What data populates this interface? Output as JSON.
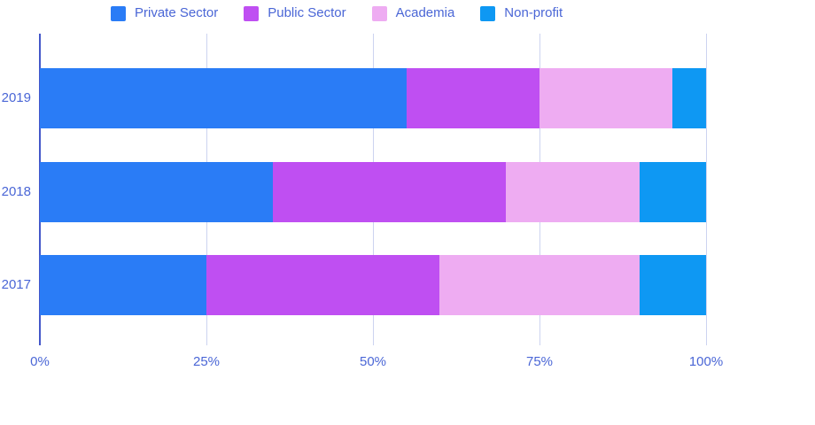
{
  "chart_data": {
    "type": "bar",
    "orientation": "horizontal",
    "stacked": "percent",
    "title": "",
    "xlabel": "",
    "ylabel": "",
    "categories": [
      "2019",
      "2018",
      "2017"
    ],
    "series": [
      {
        "name": "Private Sector",
        "color": "#2a7cf6",
        "values": [
          55,
          35,
          25
        ]
      },
      {
        "name": "Public Sector",
        "color": "#bf4ff2",
        "values": [
          20,
          35,
          35
        ]
      },
      {
        "name": "Academia",
        "color": "#eeacf2",
        "values": [
          20,
          20,
          30
        ]
      },
      {
        "name": "Non-profit",
        "color": "#0e98f3",
        "values": [
          5,
          10,
          10
        ]
      }
    ],
    "x_ticks": [
      "0%",
      "25%",
      "50%",
      "75%",
      "100%"
    ],
    "xlim": [
      0,
      100
    ],
    "grid": true,
    "legend_position": "top",
    "colors": {
      "label_text": "#4a66d6",
      "gridline": "#ccd3f0",
      "axis_line": "#4457c9",
      "background": "#ffffff"
    }
  }
}
